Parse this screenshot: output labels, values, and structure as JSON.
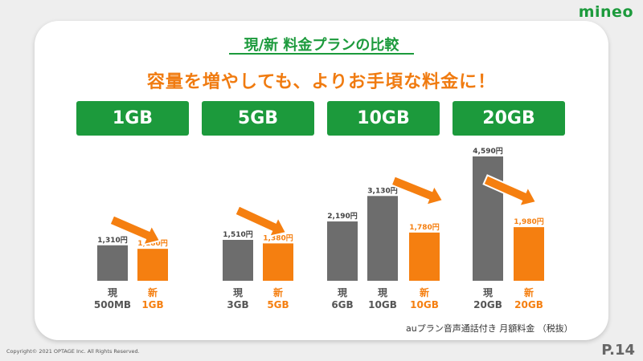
{
  "brand": {
    "logo_text": "mineo"
  },
  "page_title": "現/新 料金プランの比較",
  "subtitle": "容量を増やしても、よりお手頃な料金に！",
  "plan_headers": [
    "1GB",
    "5GB",
    "10GB",
    "20GB"
  ],
  "note": "auプラン音声通話付き 月額料金 （税抜）",
  "copyright": "Copyright© 2021 OPTAGE Inc. All Rights Reserved.",
  "page_number": "P.14",
  "colors": {
    "green": "#1c9a3c",
    "orange": "#f57f10",
    "gray": "#6d6d6d"
  },
  "chart_data": {
    "type": "bar",
    "unit": "円",
    "ylim": [
      0,
      4590
    ],
    "groups": [
      {
        "header": "1GB",
        "bars": [
          {
            "series": "現",
            "label": "現",
            "sublabel": "500MB",
            "value": 1310,
            "value_label": "1,310円"
          },
          {
            "series": "新",
            "label": "新",
            "sublabel": "1GB",
            "value": 1180,
            "value_label": "1,180円"
          }
        ]
      },
      {
        "header": "5GB",
        "bars": [
          {
            "series": "現",
            "label": "現",
            "sublabel": "3GB",
            "value": 1510,
            "value_label": "1,510円"
          },
          {
            "series": "新",
            "label": "新",
            "sublabel": "5GB",
            "value": 1380,
            "value_label": "1,380円"
          }
        ]
      },
      {
        "header": "10GB",
        "bars": [
          {
            "series": "現",
            "label": "現",
            "sublabel": "6GB",
            "value": 2190,
            "value_label": "2,190円"
          },
          {
            "series": "現",
            "label": "現",
            "sublabel": "10GB",
            "value": 3130,
            "value_label": "3,130円"
          },
          {
            "series": "新",
            "label": "新",
            "sublabel": "10GB",
            "value": 1780,
            "value_label": "1,780円"
          }
        ]
      },
      {
        "header": "20GB",
        "bars": [
          {
            "series": "現",
            "label": "現",
            "sublabel": "20GB",
            "value": 4590,
            "value_label": "4,590円"
          },
          {
            "series": "新",
            "label": "新",
            "sublabel": "20GB",
            "value": 1980,
            "value_label": "1,980円"
          }
        ]
      }
    ]
  }
}
